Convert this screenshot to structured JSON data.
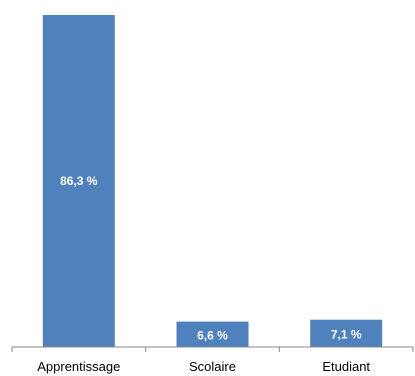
{
  "chart_data": {
    "type": "bar",
    "categories": [
      "Apprentissage",
      "Scolaire",
      "Etudiant"
    ],
    "values": [
      86.3,
      6.6,
      7.1
    ],
    "value_labels": [
      "86,3 %",
      "6,6 %",
      "7,1 %"
    ],
    "title": "",
    "xlabel": "",
    "ylabel": "",
    "ylim": [
      0,
      86.3
    ],
    "grid": false,
    "legend": "none",
    "bar_color": "#4f81bd",
    "axis_color": "#888888"
  }
}
